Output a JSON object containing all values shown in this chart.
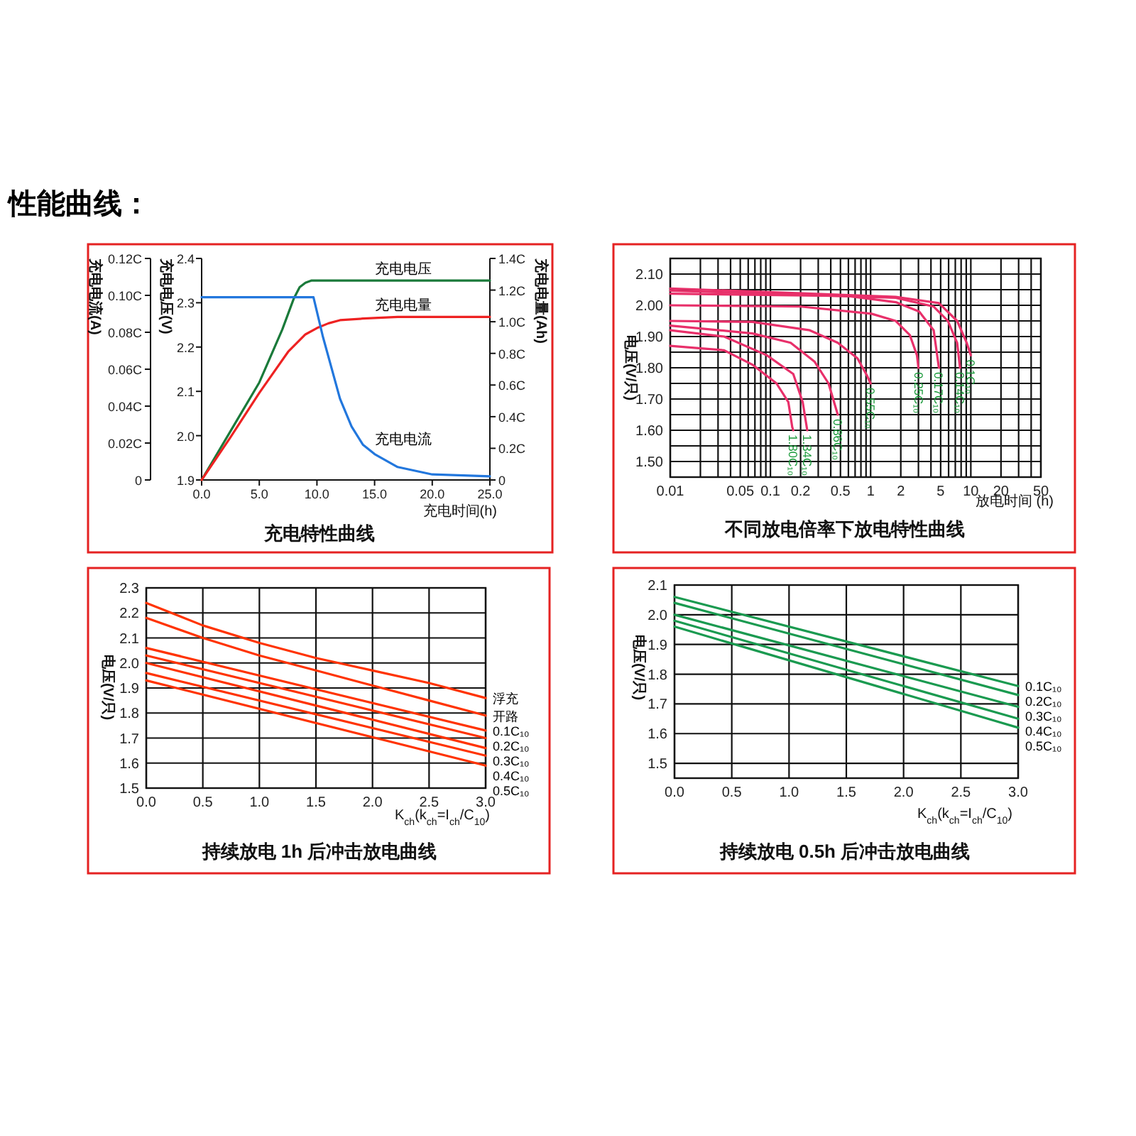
{
  "chart_data": [
    {
      "type": "line",
      "title": "充电特性曲线",
      "xlabel": "充电时间(h)",
      "ylabel": "充电电压(V)",
      "y2label": "充电电量(Ah)",
      "y3label": "充电电流(A)",
      "annotations": [
        "性能曲线："
      ],
      "xlim": [
        0,
        25
      ],
      "xticks": [
        {
          "value": 0,
          "label": "0.0"
        },
        {
          "value": 5,
          "label": "5.0"
        },
        {
          "value": 10,
          "label": "10.0"
        },
        {
          "value": 15,
          "label": "15.0"
        },
        {
          "value": 20,
          "label": "20.0"
        },
        {
          "value": 25,
          "label": "25.0"
        }
      ],
      "ylim": [
        1.9,
        2.4
      ],
      "yticks": [
        1.9,
        {
          "value": 2,
          "label": "2.0"
        },
        2.1,
        2.2,
        2.3,
        2.4
      ],
      "y2lim": [
        0,
        1.4
      ],
      "y2ticks": [
        0,
        {
          "value": 0.2,
          "label": "0.2C"
        },
        {
          "value": 0.4,
          "label": "0.4C"
        },
        {
          "value": 0.6,
          "label": "0.6C"
        },
        {
          "value": 0.8,
          "label": "0.8C"
        },
        {
          "value": 1,
          "label": "1.0C"
        },
        {
          "value": 1.2,
          "label": "1.2C"
        },
        {
          "value": 1.4,
          "label": "1.4C"
        }
      ],
      "y3lim": [
        0,
        0.12
      ],
      "y3ticks": [
        0,
        {
          "value": 0.02,
          "label": "0.02C"
        },
        {
          "value": 0.04,
          "label": "0.04C"
        },
        {
          "value": 0.06,
          "label": "0.06C"
        },
        {
          "value": 0.08,
          "label": "0.08C"
        },
        {
          "value": 0.1,
          "label": "0.10C"
        },
        {
          "value": 0.12,
          "label": "0.12C"
        }
      ],
      "series": [
        {
          "name": "充电电压",
          "color": "#1a7a3a",
          "x": [
            0,
            2.5,
            5,
            7,
            8,
            8.5,
            9,
            9.5,
            25
          ],
          "values": [
            1.9,
            2.01,
            2.12,
            2.24,
            2.31,
            2.335,
            2.345,
            2.35,
            2.35
          ]
        },
        {
          "name": "充电电量",
          "color": "#ee2222",
          "axis": "y2",
          "x": [
            0,
            2.5,
            5,
            7.5,
            9,
            10,
            11,
            12,
            14,
            17,
            20,
            25
          ],
          "values": [
            0,
            0.27,
            0.55,
            0.81,
            0.92,
            0.96,
            0.99,
            1.01,
            1.02,
            1.03,
            1.03,
            1.03
          ]
        },
        {
          "name": "充电电流",
          "color": "#2277dd",
          "axis": "y3",
          "x": [
            0,
            9.7,
            10.5,
            12,
            13,
            14,
            15,
            17,
            20,
            25
          ],
          "values": [
            0.099,
            0.099,
            0.078,
            0.044,
            0.029,
            0.019,
            0.014,
            0.007,
            0.003,
            0.002
          ]
        }
      ]
    },
    {
      "type": "line",
      "title": "不同放电倍率下放电特性曲线",
      "xlabel": "放电时间 (h)",
      "ylabel": "电压(V/只)",
      "log": "x",
      "grid": true,
      "xlim": [
        0.01,
        50
      ],
      "xticks": [
        0.01,
        {
          "value": 0.02,
          "label": null
        },
        {
          "value": 0.03,
          "label": null
        },
        {
          "value": 0.04,
          "label": null
        },
        0.05,
        {
          "value": 0.06,
          "label": null
        },
        {
          "value": 0.07,
          "label": null
        },
        {
          "value": 0.08,
          "label": null
        },
        {
          "value": 0.09,
          "label": null
        },
        0.1,
        0.2,
        {
          "value": 0.3,
          "label": null
        },
        {
          "value": 0.4,
          "label": null
        },
        0.5,
        {
          "value": 0.6,
          "label": null
        },
        {
          "value": 0.7,
          "label": null
        },
        {
          "value": 0.8,
          "label": null
        },
        {
          "value": 0.9,
          "label": null
        },
        1,
        2,
        {
          "value": 3,
          "label": null
        },
        {
          "value": 4,
          "label": null
        },
        5,
        {
          "value": 6,
          "label": null
        },
        {
          "value": 7,
          "label": null
        },
        {
          "value": 8,
          "label": null
        },
        {
          "value": 9,
          "label": null
        },
        10,
        20,
        {
          "value": 30,
          "label": null
        },
        {
          "value": 40,
          "label": null
        },
        50
      ],
      "ylim": [
        1.45,
        2.15
      ],
      "yticks": [
        {
          "value": 1.5,
          "label": "1.50"
        },
        {
          "value": 1.55,
          "label": null
        },
        {
          "value": 1.6,
          "label": "1.60"
        },
        {
          "value": 1.65,
          "label": null
        },
        {
          "value": 1.7,
          "label": "1.70"
        },
        {
          "value": 1.75,
          "label": null
        },
        {
          "value": 1.8,
          "label": "1.80"
        },
        {
          "value": 1.85,
          "label": null
        },
        {
          "value": 1.9,
          "label": "1.90"
        },
        {
          "value": 1.95,
          "label": null
        },
        {
          "value": 2,
          "label": "2.00"
        },
        {
          "value": 2.05,
          "label": null
        },
        {
          "value": 2.1,
          "label": "2.10"
        }
      ],
      "series": [
        {
          "name": "1.80C₁₀",
          "color": "#e8306a",
          "x": [
            0.01,
            0.0345,
            0.066,
            0.115,
            0.151,
            0.165,
            0.169
          ],
          "values": [
            1.87,
            1.856,
            1.81,
            1.75,
            1.69,
            1.61,
            1.6
          ]
        },
        {
          "name": "1.34C₁₀",
          "color": "#e8306a",
          "x": [
            0.01,
            0.0345,
            0.092,
            0.169,
            0.21,
            0.233
          ],
          "values": [
            1.92,
            1.9,
            1.84,
            1.78,
            1.69,
            1.6
          ]
        },
        {
          "name": "0.86C₁₀",
          "color": "#e8306a",
          "x": [
            0.01,
            0.066,
            0.159,
            0.275,
            0.38,
            0.47
          ],
          "values": [
            1.935,
            1.91,
            1.88,
            1.82,
            1.75,
            1.65
          ]
        },
        {
          "name": "0.55C₁₀",
          "color": "#e8306a",
          "x": [
            0.01,
            0.066,
            0.247,
            0.47,
            0.74,
            0.92,
            1.0
          ],
          "values": [
            1.95,
            1.947,
            1.92,
            1.88,
            1.83,
            1.775,
            1.75
          ]
        },
        {
          "name": "0.25C₁₀",
          "color": "#e8306a",
          "x": [
            0.01,
            0.2,
            1.02,
            1.78,
            2.46,
            2.9,
            3.0
          ],
          "values": [
            2.0,
            1.996,
            1.973,
            1.95,
            1.905,
            1.84,
            1.8
          ]
        },
        {
          "name": "0.17C₁₀",
          "color": "#e8306a",
          "x": [
            0.01,
            0.59,
            1.78,
            3.05,
            4.26,
            4.8
          ],
          "values": [
            2.037,
            2.03,
            2.01,
            1.98,
            1.92,
            1.8
          ]
        },
        {
          "name": "0.14C₁₀",
          "color": "#e8306a",
          "x": [
            0.01,
            1.78,
            4.26,
            5.9,
            7.3,
            7.8
          ],
          "values": [
            2.047,
            2.024,
            1.996,
            1.95,
            1.88,
            1.8
          ]
        },
        {
          "name": "0.1C₁₀",
          "color": "#e8306a",
          "x": [
            0.01,
            1.78,
            4.8,
            7.3,
            9.1,
            10
          ],
          "values": [
            2.054,
            2.027,
            2.007,
            1.95,
            1.88,
            1.84
          ]
        }
      ]
    },
    {
      "type": "line",
      "title": "持续放电 1h 后冲击放电曲线",
      "xlabel": "K$_{ch}$(k$_{ch}$=I$_{ch}$/C$_{10}$)",
      "ylabel": "电压(V/只)",
      "grid": true,
      "xlim": [
        0,
        3
      ],
      "xticks": [
        {
          "value": 0,
          "label": "0.0"
        },
        0.5,
        {
          "value": 1,
          "label": "1.0"
        },
        1.5,
        {
          "value": 2,
          "label": "2.0"
        },
        2.5,
        {
          "value": 3,
          "label": "3.0"
        }
      ],
      "ylim": [
        1.5,
        2.3
      ],
      "yticks": [
        1.5,
        1.6,
        1.7,
        1.8,
        1.9,
        {
          "value": 2,
          "label": "2.0"
        },
        2.1,
        2.2,
        2.3
      ],
      "series": [
        {
          "name": "浮充",
          "color": "#ff3300",
          "x": [
            0,
            0.5,
            1,
            1.5,
            2,
            2.5,
            3
          ],
          "values": [
            2.24,
            2.15,
            2.08,
            2.02,
            1.97,
            1.92,
            1.86
          ]
        },
        {
          "name": "开路",
          "color": "#ff3300",
          "x": [
            0,
            0.5,
            1,
            1.5,
            2,
            2.5,
            3
          ],
          "values": [
            2.18,
            2.1,
            2.03,
            1.97,
            1.91,
            1.85,
            1.79
          ]
        },
        {
          "name": "0.1C₁₀",
          "color": "#ff3300",
          "x": [
            0,
            3
          ],
          "values": [
            2.06,
            1.73
          ]
        },
        {
          "name": "0.2C₁₀",
          "color": "#ff3300",
          "x": [
            0,
            3
          ],
          "values": [
            2.03,
            1.7
          ]
        },
        {
          "name": "0.3C₁₀",
          "color": "#ff3300",
          "x": [
            0,
            3
          ],
          "values": [
            2.0,
            1.66
          ]
        },
        {
          "name": "0.4C₁₀",
          "color": "#ff3300",
          "x": [
            0,
            3
          ],
          "values": [
            1.96,
            1.63
          ]
        },
        {
          "name": "0.5C₁₀",
          "color": "#ff3300",
          "x": [
            0,
            3
          ],
          "values": [
            1.93,
            1.59
          ]
        }
      ]
    },
    {
      "type": "line",
      "title": "持续放电 0.5h 后冲击放电曲线",
      "xlabel": "K$_{ch}$(k$_{ch}$=I$_{ch}$/C$_{10}$)",
      "ylabel": "电压(V/只)",
      "grid": true,
      "xlim": [
        0,
        3
      ],
      "xticks": [
        {
          "value": 0,
          "label": "0.0"
        },
        0.5,
        {
          "value": 1,
          "label": "1.0"
        },
        1.5,
        {
          "value": 2,
          "label": "2.0"
        },
        2.5,
        {
          "value": 3,
          "label": "3.0"
        }
      ],
      "ylim": [
        1.45,
        2.1
      ],
      "yticks": [
        1.5,
        1.6,
        1.7,
        1.8,
        1.9,
        {
          "value": 2,
          "label": "2.0"
        },
        2.1
      ],
      "series": [
        {
          "name": "0.1C₁₀",
          "color": "#1a9a50",
          "x": [
            0,
            3
          ],
          "values": [
            2.06,
            1.76
          ]
        },
        {
          "name": "0.2C₁₀",
          "color": "#1a9a50",
          "x": [
            0,
            3
          ],
          "values": [
            2.04,
            1.73
          ]
        },
        {
          "name": "0.3C₁₀",
          "color": "#1a9a50",
          "x": [
            0,
            3
          ],
          "values": [
            2.0,
            1.69
          ]
        },
        {
          "name": "0.4C₁₀",
          "color": "#1a9a50",
          "x": [
            0,
            3
          ],
          "values": [
            1.98,
            1.65
          ]
        },
        {
          "name": "0.5C₁₀",
          "color": "#1a9a50",
          "x": [
            0,
            3
          ],
          "values": [
            1.96,
            1.62
          ]
        }
      ]
    }
  ]
}
